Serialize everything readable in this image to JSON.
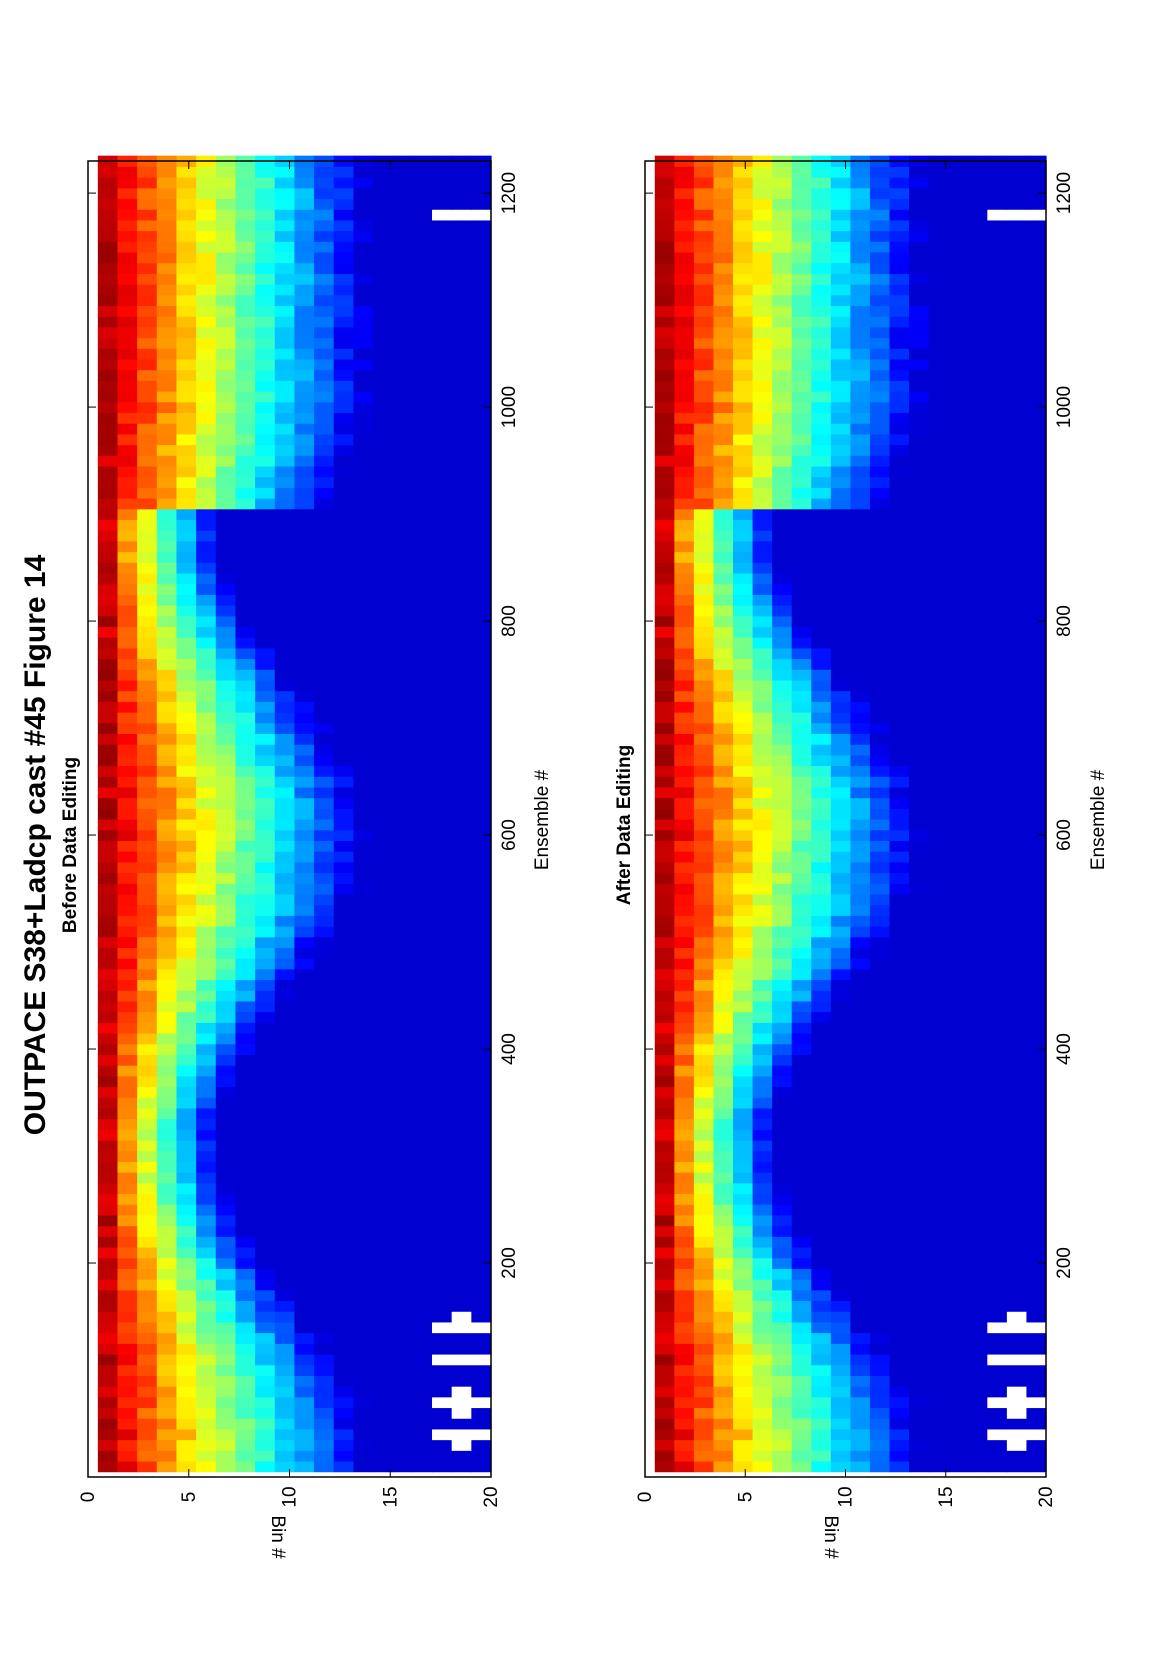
{
  "figure": {
    "title": "OUTPACE S38+Ladcp cast #45  Figure 14"
  },
  "chart_data": [
    {
      "type": "heatmap",
      "title": "Before Data Editing",
      "xlabel": "Ensemble #",
      "ylabel": "Bin #",
      "xlim": [
        0,
        1230
      ],
      "ylim": [
        0,
        20
      ],
      "xticks": [
        200,
        400,
        600,
        800,
        1000,
        1200
      ],
      "yticks": [
        0,
        5,
        10,
        15,
        20
      ],
      "colormap": "jet",
      "orientation": "rotated-90-ccw",
      "gap_ensembles": [
        40,
        46,
        52,
        58,
        64,
        70,
        76,
        82,
        88,
        95,
        104,
        110,
        116,
        122,
        128,
        134,
        140,
        146,
        152,
        158,
        205,
        212,
        218,
        1180
      ]
    },
    {
      "type": "heatmap",
      "title": "After Data Editing",
      "xlabel": "Ensemble #",
      "ylabel": "Bin #",
      "xlim": [
        0,
        1230
      ],
      "ylim": [
        0,
        20
      ],
      "xticks": [
        200,
        400,
        600,
        800,
        1000,
        1200
      ],
      "yticks": [
        0,
        5,
        10,
        15,
        20
      ],
      "colormap": "jet",
      "orientation": "rotated-90-ccw",
      "gap_ensembles": [
        40,
        46,
        52,
        58,
        64,
        70,
        76,
        82,
        88,
        95,
        104,
        110,
        116,
        122,
        128,
        134,
        140,
        146,
        152,
        158,
        205,
        212,
        218,
        1180
      ]
    }
  ]
}
